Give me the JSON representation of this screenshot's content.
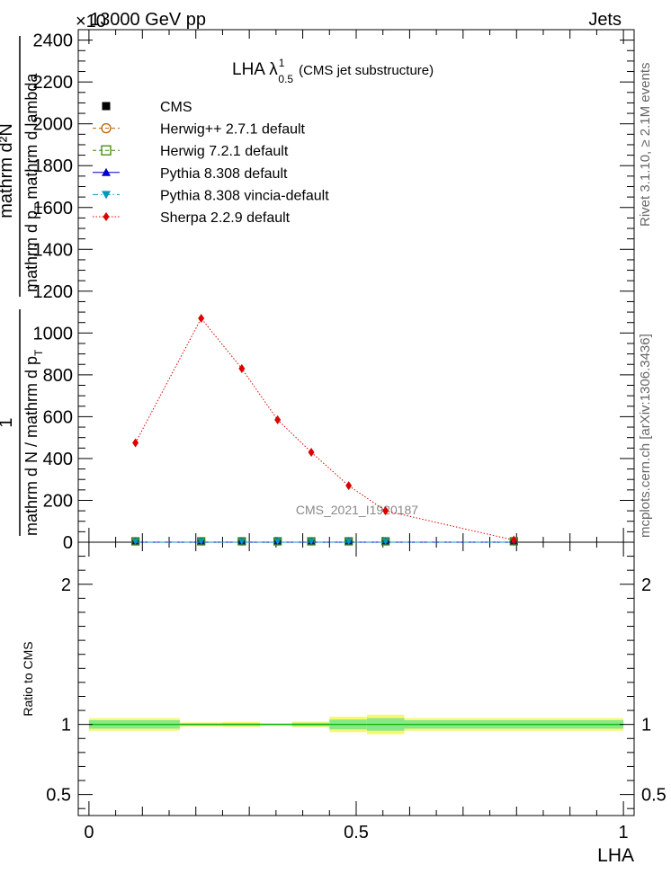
{
  "header": {
    "left": "13000 GeV pp",
    "right": "Jets",
    "exponent": "×10"
  },
  "side_labels": {
    "rivet": "Rivet 3.1.10, ≥ 2.1M events",
    "mcplots": "mcplots.cern.ch [arXiv:1306.3436]"
  },
  "chart_data": {
    "type": "line",
    "title": "LHA λ",
    "title_super": "1",
    "title_sub": "0.5",
    "title_note": "(CMS jet substructure)",
    "analysis_label": "CMS_2021_I1920187",
    "ylabel_num_1": "1",
    "ylabel_den": "mathrm d N / mathrm d p",
    "ylabel_den_sub": "T",
    "ylabel_num_2": "mathrm d²N",
    "ylabel_den_2": "mathrm d p",
    "ylabel_den_2_sub": "T",
    "ylabel_den_2b": "mathrm d lambda",
    "xlabel": "LHA",
    "ratio_ylabel": "Ratio to CMS",
    "xlim": [
      -0.02,
      1.02
    ],
    "ylim": [
      0,
      2450
    ],
    "ratio_ylim": [
      0.35,
      2.3
    ],
    "x_ticks": [
      {
        "value": 0,
        "label": "0"
      },
      {
        "value": 0.5,
        "label": "0.5"
      },
      {
        "value": 1,
        "label": "1"
      }
    ],
    "y_ticks": [
      {
        "value": 0,
        "label": "0"
      },
      {
        "value": 200,
        "label": "200"
      },
      {
        "value": 400,
        "label": "400"
      },
      {
        "value": 600,
        "label": "600"
      },
      {
        "value": 800,
        "label": "800"
      },
      {
        "value": 1000,
        "label": "1000"
      },
      {
        "value": 1200,
        "label": "1200"
      },
      {
        "value": 1400,
        "label": "1400"
      },
      {
        "value": 1600,
        "label": "1600"
      },
      {
        "value": 1800,
        "label": "1800"
      },
      {
        "value": 2000,
        "label": "2000"
      },
      {
        "value": 2200,
        "label": "2200"
      },
      {
        "value": 2400,
        "label": "2400"
      }
    ],
    "ratio_ticks": [
      {
        "value": 0.5,
        "label": "0.5"
      },
      {
        "value": 1,
        "label": "1"
      },
      {
        "value": 2,
        "label": "2"
      }
    ],
    "x": [
      0.087,
      0.21,
      0.286,
      0.353,
      0.416,
      0.486,
      0.555,
      0.795
    ],
    "bin_edges": [
      0.0,
      0.17,
      0.25,
      0.32,
      0.38,
      0.45,
      0.52,
      0.59,
      1.0
    ],
    "series": [
      {
        "name": "CMS",
        "color": "#000000",
        "marker": "square-filled",
        "line": "none",
        "values": [
          0,
          0,
          0,
          0,
          0,
          0,
          0,
          0
        ]
      },
      {
        "name": "Herwig++ 2.7.1 default",
        "color": "#c06000",
        "marker": "circle-open",
        "line": "dashed",
        "values": [
          0,
          0,
          0,
          0,
          0,
          0,
          0,
          0
        ]
      },
      {
        "name": "Herwig 7.2.1 default",
        "color": "#3a8a00",
        "marker": "square-open",
        "line": "dashed",
        "values": [
          0,
          0,
          0,
          0,
          0,
          0,
          0,
          0
        ]
      },
      {
        "name": "Pythia 8.308 default",
        "color": "#0000cc",
        "marker": "triangle-up",
        "line": "solid",
        "values": [
          0,
          0,
          0,
          0,
          0,
          0,
          0,
          0
        ]
      },
      {
        "name": "Pythia 8.308 vincia-default",
        "color": "#0099bb",
        "marker": "triangle-down",
        "line": "dashdot",
        "values": [
          0,
          0,
          0,
          0,
          0,
          0,
          0,
          0
        ]
      },
      {
        "name": "Sherpa 2.2.9 default",
        "color": "#dd0000",
        "marker": "diamond",
        "line": "dotted",
        "values": [
          475,
          1070,
          830,
          585,
          430,
          270,
          150,
          10
        ]
      }
    ],
    "ratio_band": {
      "inner_color": "#88e888",
      "outer_color": "#f8f870",
      "inner_halfwidth": [
        0.03,
        0.008,
        0.01,
        0.006,
        0.012,
        0.035,
        0.045,
        0.03
      ],
      "outer_halfwidth": [
        0.045,
        0.015,
        0.018,
        0.01,
        0.02,
        0.055,
        0.07,
        0.045
      ]
    },
    "legend_position": "top-left"
  }
}
